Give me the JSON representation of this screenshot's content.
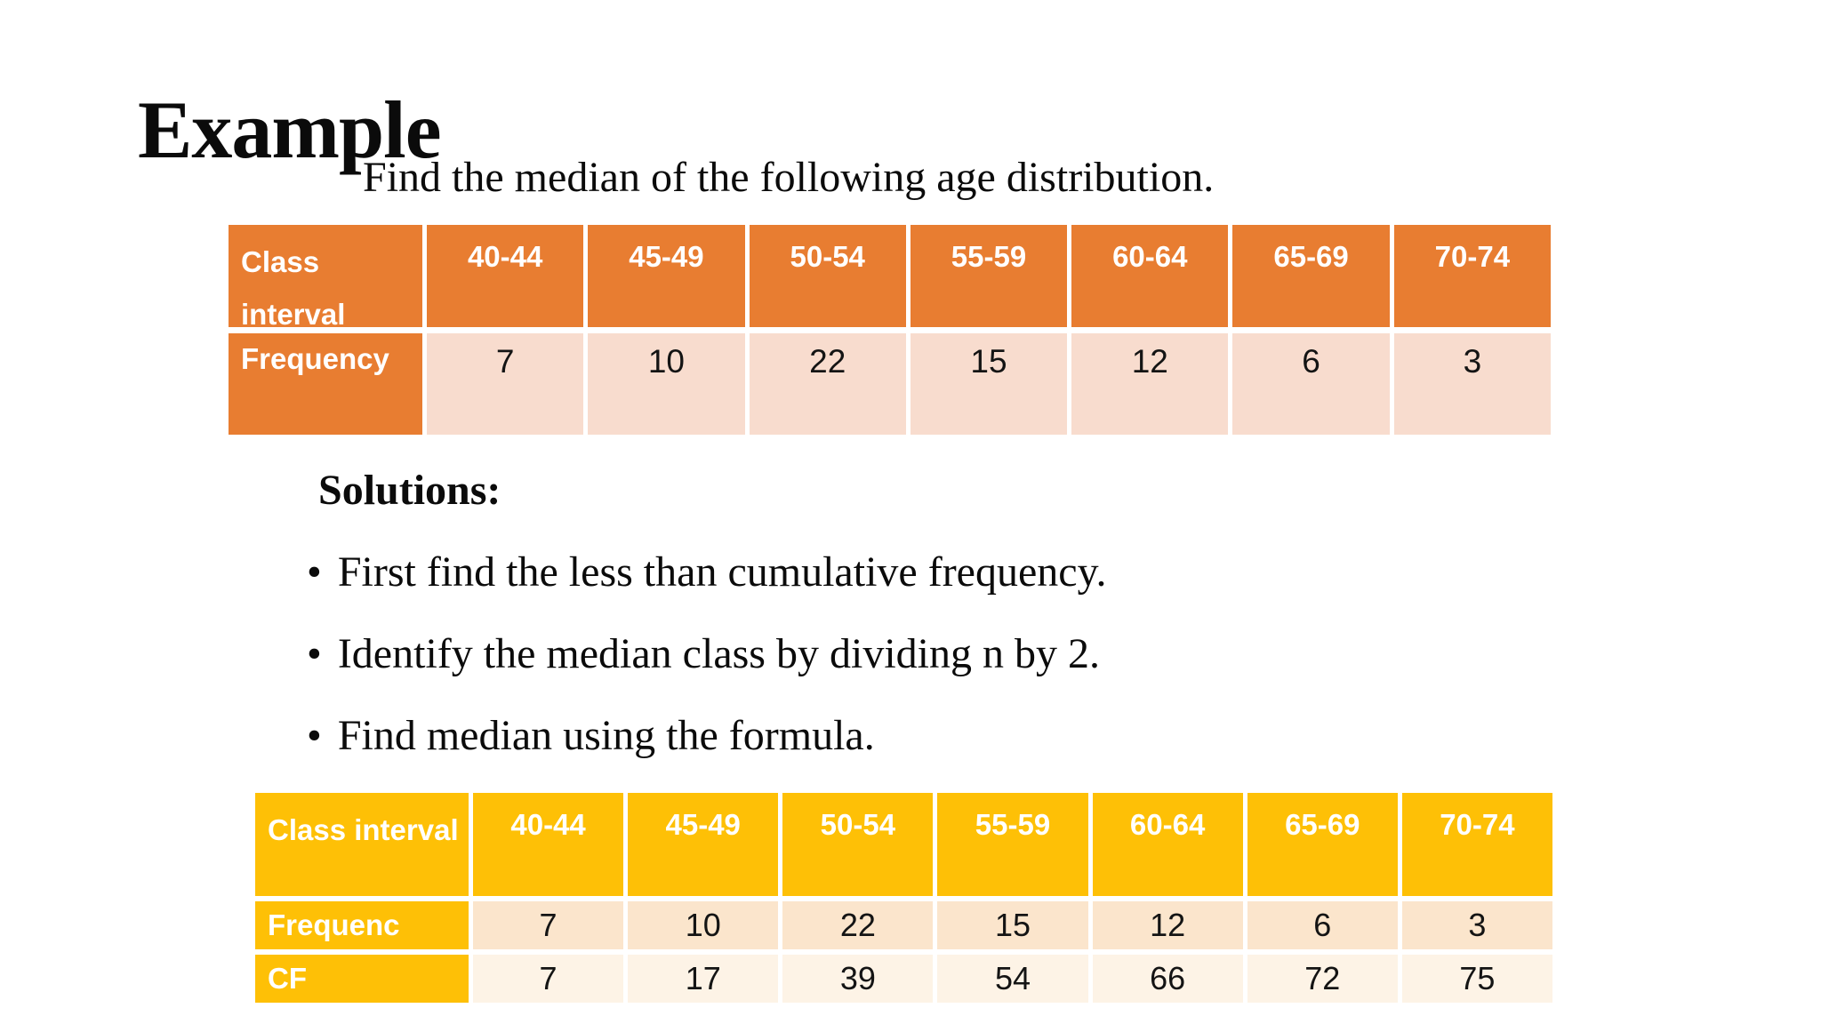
{
  "slide": {
    "title": "Example",
    "subtitle": "Find the median of the following age distribution.",
    "solutions_heading": "Solutions:",
    "bullet_char": "•",
    "bullets": [
      "First find the less than cumulative frequency.",
      "Identify the median class by dividing n by 2.",
      "Find median using the formula."
    ]
  },
  "colors": {
    "background": "#FFFFFF",
    "text": "#0B0B0B",
    "table1_header_orange": "#E87D31",
    "table1_row_tint": "#F8DCCE",
    "table2_header_gold": "#FEC006",
    "table2_frequency_row_tint": "#FBE5CC",
    "table2_cf_row_tint": "#FDF3E6",
    "table_label_text": "#FFFFFF"
  },
  "table1": {
    "header_label": "Class interval",
    "columns": [
      "40-44",
      "45-49",
      "50-54",
      "55-59",
      "60-64",
      "65-69",
      "70-74"
    ],
    "rows": [
      {
        "label": "Frequency",
        "values": [
          "7",
          "10",
          "22",
          "15",
          "12",
          "6",
          "3"
        ]
      }
    ]
  },
  "table2": {
    "header_label": "Class interval",
    "columns": [
      "40-44",
      "45-49",
      "50-54",
      "55-59",
      "60-64",
      "65-69",
      "70-74"
    ],
    "rows": [
      {
        "label": "Frequenc",
        "values": [
          "7",
          "10",
          "22",
          "15",
          "12",
          "6",
          "3"
        ]
      },
      {
        "label": "CF",
        "values": [
          "7",
          "17",
          "39",
          "54",
          "66",
          "72",
          "75"
        ]
      }
    ]
  }
}
